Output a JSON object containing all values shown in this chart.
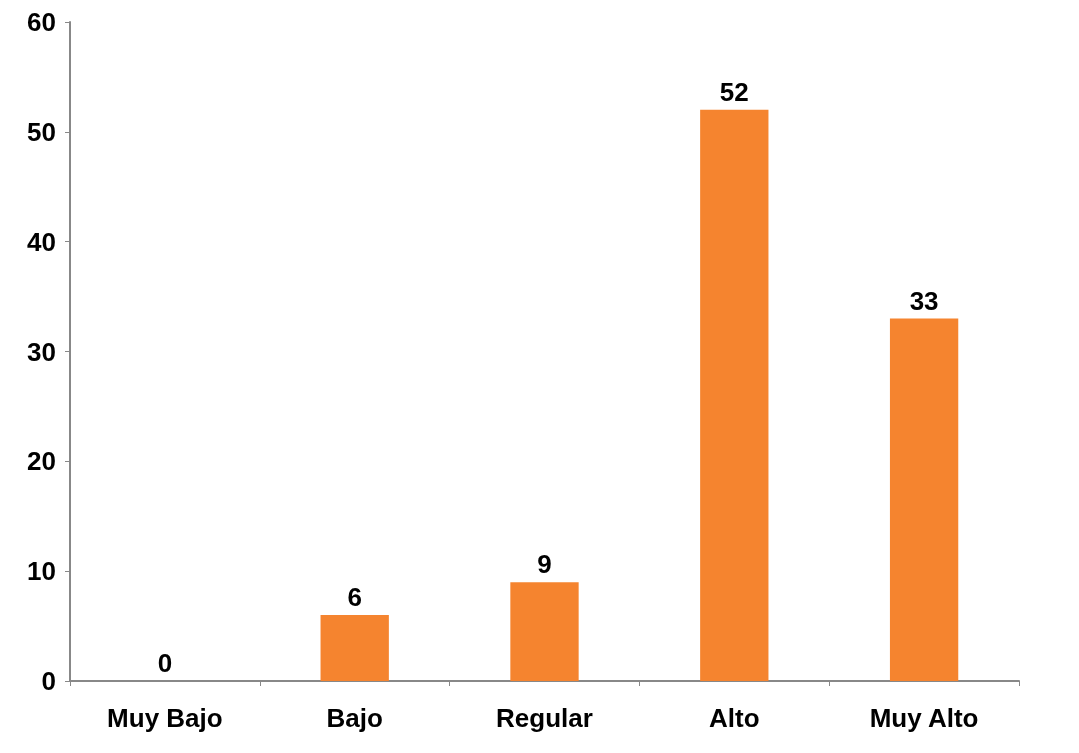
{
  "chart_data": {
    "type": "bar",
    "categories": [
      "Muy Bajo",
      "Bajo",
      "Regular",
      "Alto",
      "Muy Alto"
    ],
    "values": [
      0,
      6,
      9,
      52,
      33
    ],
    "color": "#f5842f",
    "ylim": [
      0,
      60
    ],
    "yticks": [
      0,
      10,
      20,
      30,
      40,
      50,
      60
    ],
    "grid": false,
    "data_labels": true
  }
}
